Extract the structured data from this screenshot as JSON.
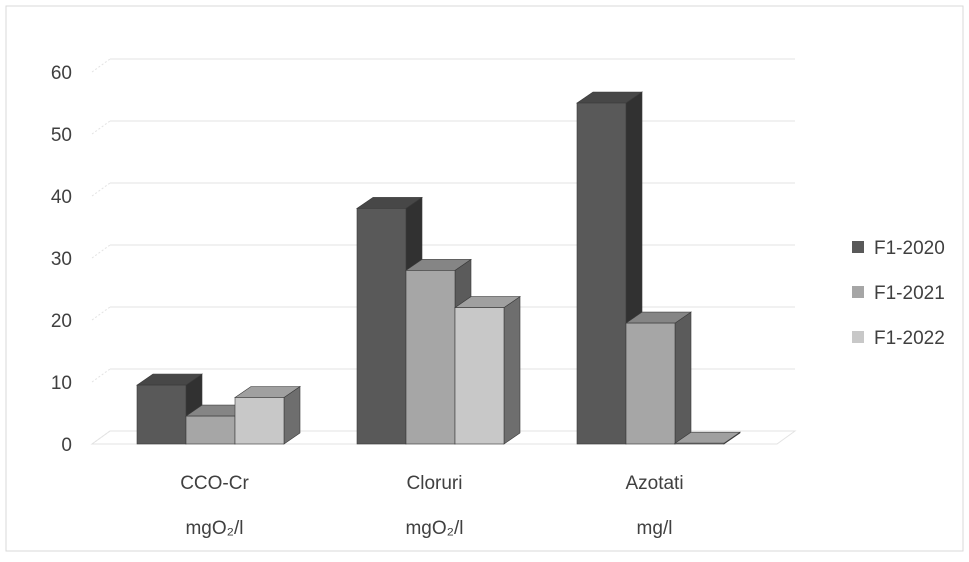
{
  "chart_data": {
    "type": "bar",
    "style": "3d-clustered-column",
    "title": "",
    "xlabel": "",
    "ylabel": "",
    "ylim": [
      0,
      60
    ],
    "y_ticks": [
      "0",
      "10",
      "20",
      "30",
      "40",
      "50",
      "60"
    ],
    "grid": true,
    "legend_position": "right",
    "categories": [
      {
        "name": "CCO-Cr",
        "unit": "mgO₂/l"
      },
      {
        "name": "Cloruri",
        "unit": "mgO₂/l"
      },
      {
        "name": "Azotati",
        "unit": "mg/l"
      }
    ],
    "series": [
      {
        "name": "F1-2020",
        "color": "#595959",
        "values": [
          9.5,
          38,
          55
        ]
      },
      {
        "name": "F1-2021",
        "color": "#a6a6a6",
        "values": [
          4.5,
          28,
          19.5
        ]
      },
      {
        "name": "F1-2022",
        "color": "#c8c8c8",
        "values": [
          7.5,
          22,
          0
        ]
      }
    ]
  }
}
